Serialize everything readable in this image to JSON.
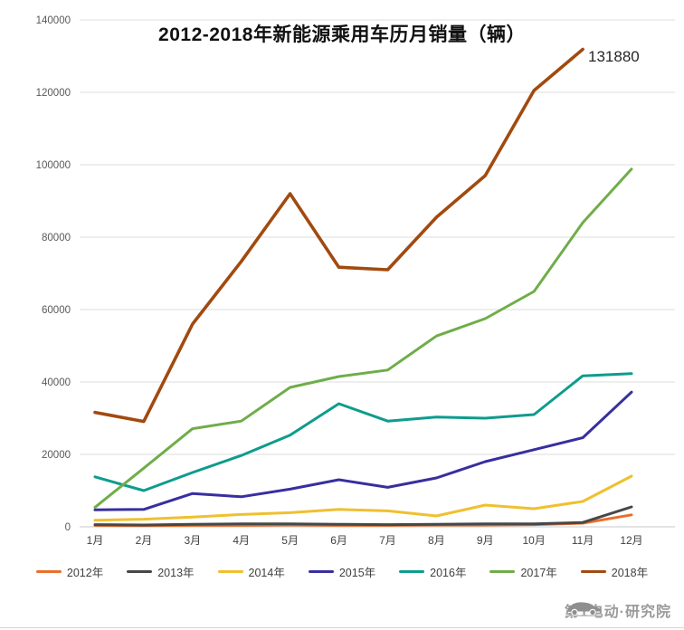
{
  "title": "2012-2018年新能源乘用车历月销量（辆）",
  "annotation": {
    "label": "131880",
    "series": "2018年",
    "month": "11月"
  },
  "watermark": {
    "text": "第1电动·研究院",
    "icon": "car-icon"
  },
  "chart_data": {
    "type": "line",
    "title": "2012-2018年新能源乘用车历月销量（辆）",
    "categories": [
      "1月",
      "2月",
      "3月",
      "4月",
      "5月",
      "6月",
      "7月",
      "8月",
      "9月",
      "10月",
      "11月",
      "12月"
    ],
    "series": [
      {
        "name": "2012年",
        "color": "#e8702a",
        "values": [
          400,
          300,
          400,
          400,
          500,
          400,
          400,
          500,
          500,
          600,
          1000,
          3300
        ]
      },
      {
        "name": "2013年",
        "color": "#474747",
        "values": [
          600,
          500,
          700,
          800,
          800,
          700,
          600,
          700,
          800,
          800,
          1200,
          5500
        ]
      },
      {
        "name": "2014年",
        "color": "#efc02f",
        "values": [
          1800,
          2100,
          2700,
          3400,
          3900,
          4800,
          4400,
          3000,
          6000,
          5000,
          7000,
          14000
        ]
      },
      {
        "name": "2015年",
        "color": "#372f9f",
        "values": [
          4700,
          4800,
          9200,
          8300,
          10400,
          13000,
          10900,
          13500,
          18000,
          21300,
          24600,
          37200
        ]
      },
      {
        "name": "2016年",
        "color": "#0d9c8d",
        "values": [
          13800,
          10000,
          15000,
          19700,
          25300,
          34000,
          29200,
          30300,
          30000,
          31000,
          41700,
          42300
        ]
      },
      {
        "name": "2017年",
        "color": "#6fad49",
        "values": [
          5400,
          16200,
          27100,
          29200,
          38500,
          41500,
          43300,
          52700,
          57500,
          65000,
          84000,
          98800
        ]
      },
      {
        "name": "2018年",
        "color": "#a14a10",
        "values": [
          31600,
          29100,
          56000,
          73300,
          92000,
          71700,
          71000,
          85500,
          97000,
          120500,
          131880
        ]
      }
    ],
    "xlabel": "",
    "ylabel": "",
    "ylim": [
      0,
      140000
    ],
    "ytick_interval": 20000,
    "grid": "horizontal",
    "legend_position": "bottom"
  }
}
